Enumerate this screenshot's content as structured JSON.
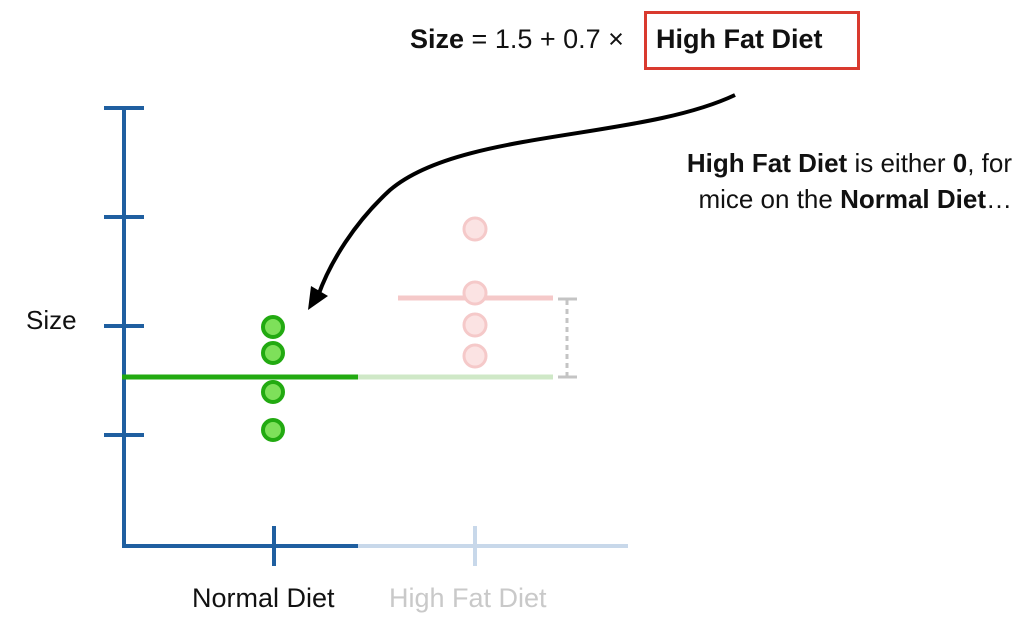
{
  "equation": {
    "lhs": "Size",
    "middle": "= 1.5 + 0.7 ×",
    "boxed_term": "High Fat Diet"
  },
  "annotation": {
    "bold_1": "High Fat Diet",
    "text_1": " is either ",
    "bold_2": "0",
    "text_2": ", for",
    "text_3": "mice on the ",
    "bold_3": "Normal Diet",
    "text_4": "…"
  },
  "axes": {
    "ylabel": "Size",
    "categories": [
      "Normal Diet",
      "High Fat Diet"
    ]
  },
  "colors": {
    "axis": "#1f5fa0",
    "axis_faded": "#c8d8ea",
    "green": "#22aa11",
    "green_fill": "#7ee05a",
    "pink": "#f5c9c9",
    "highlight_box": "#d93a2f"
  }
}
